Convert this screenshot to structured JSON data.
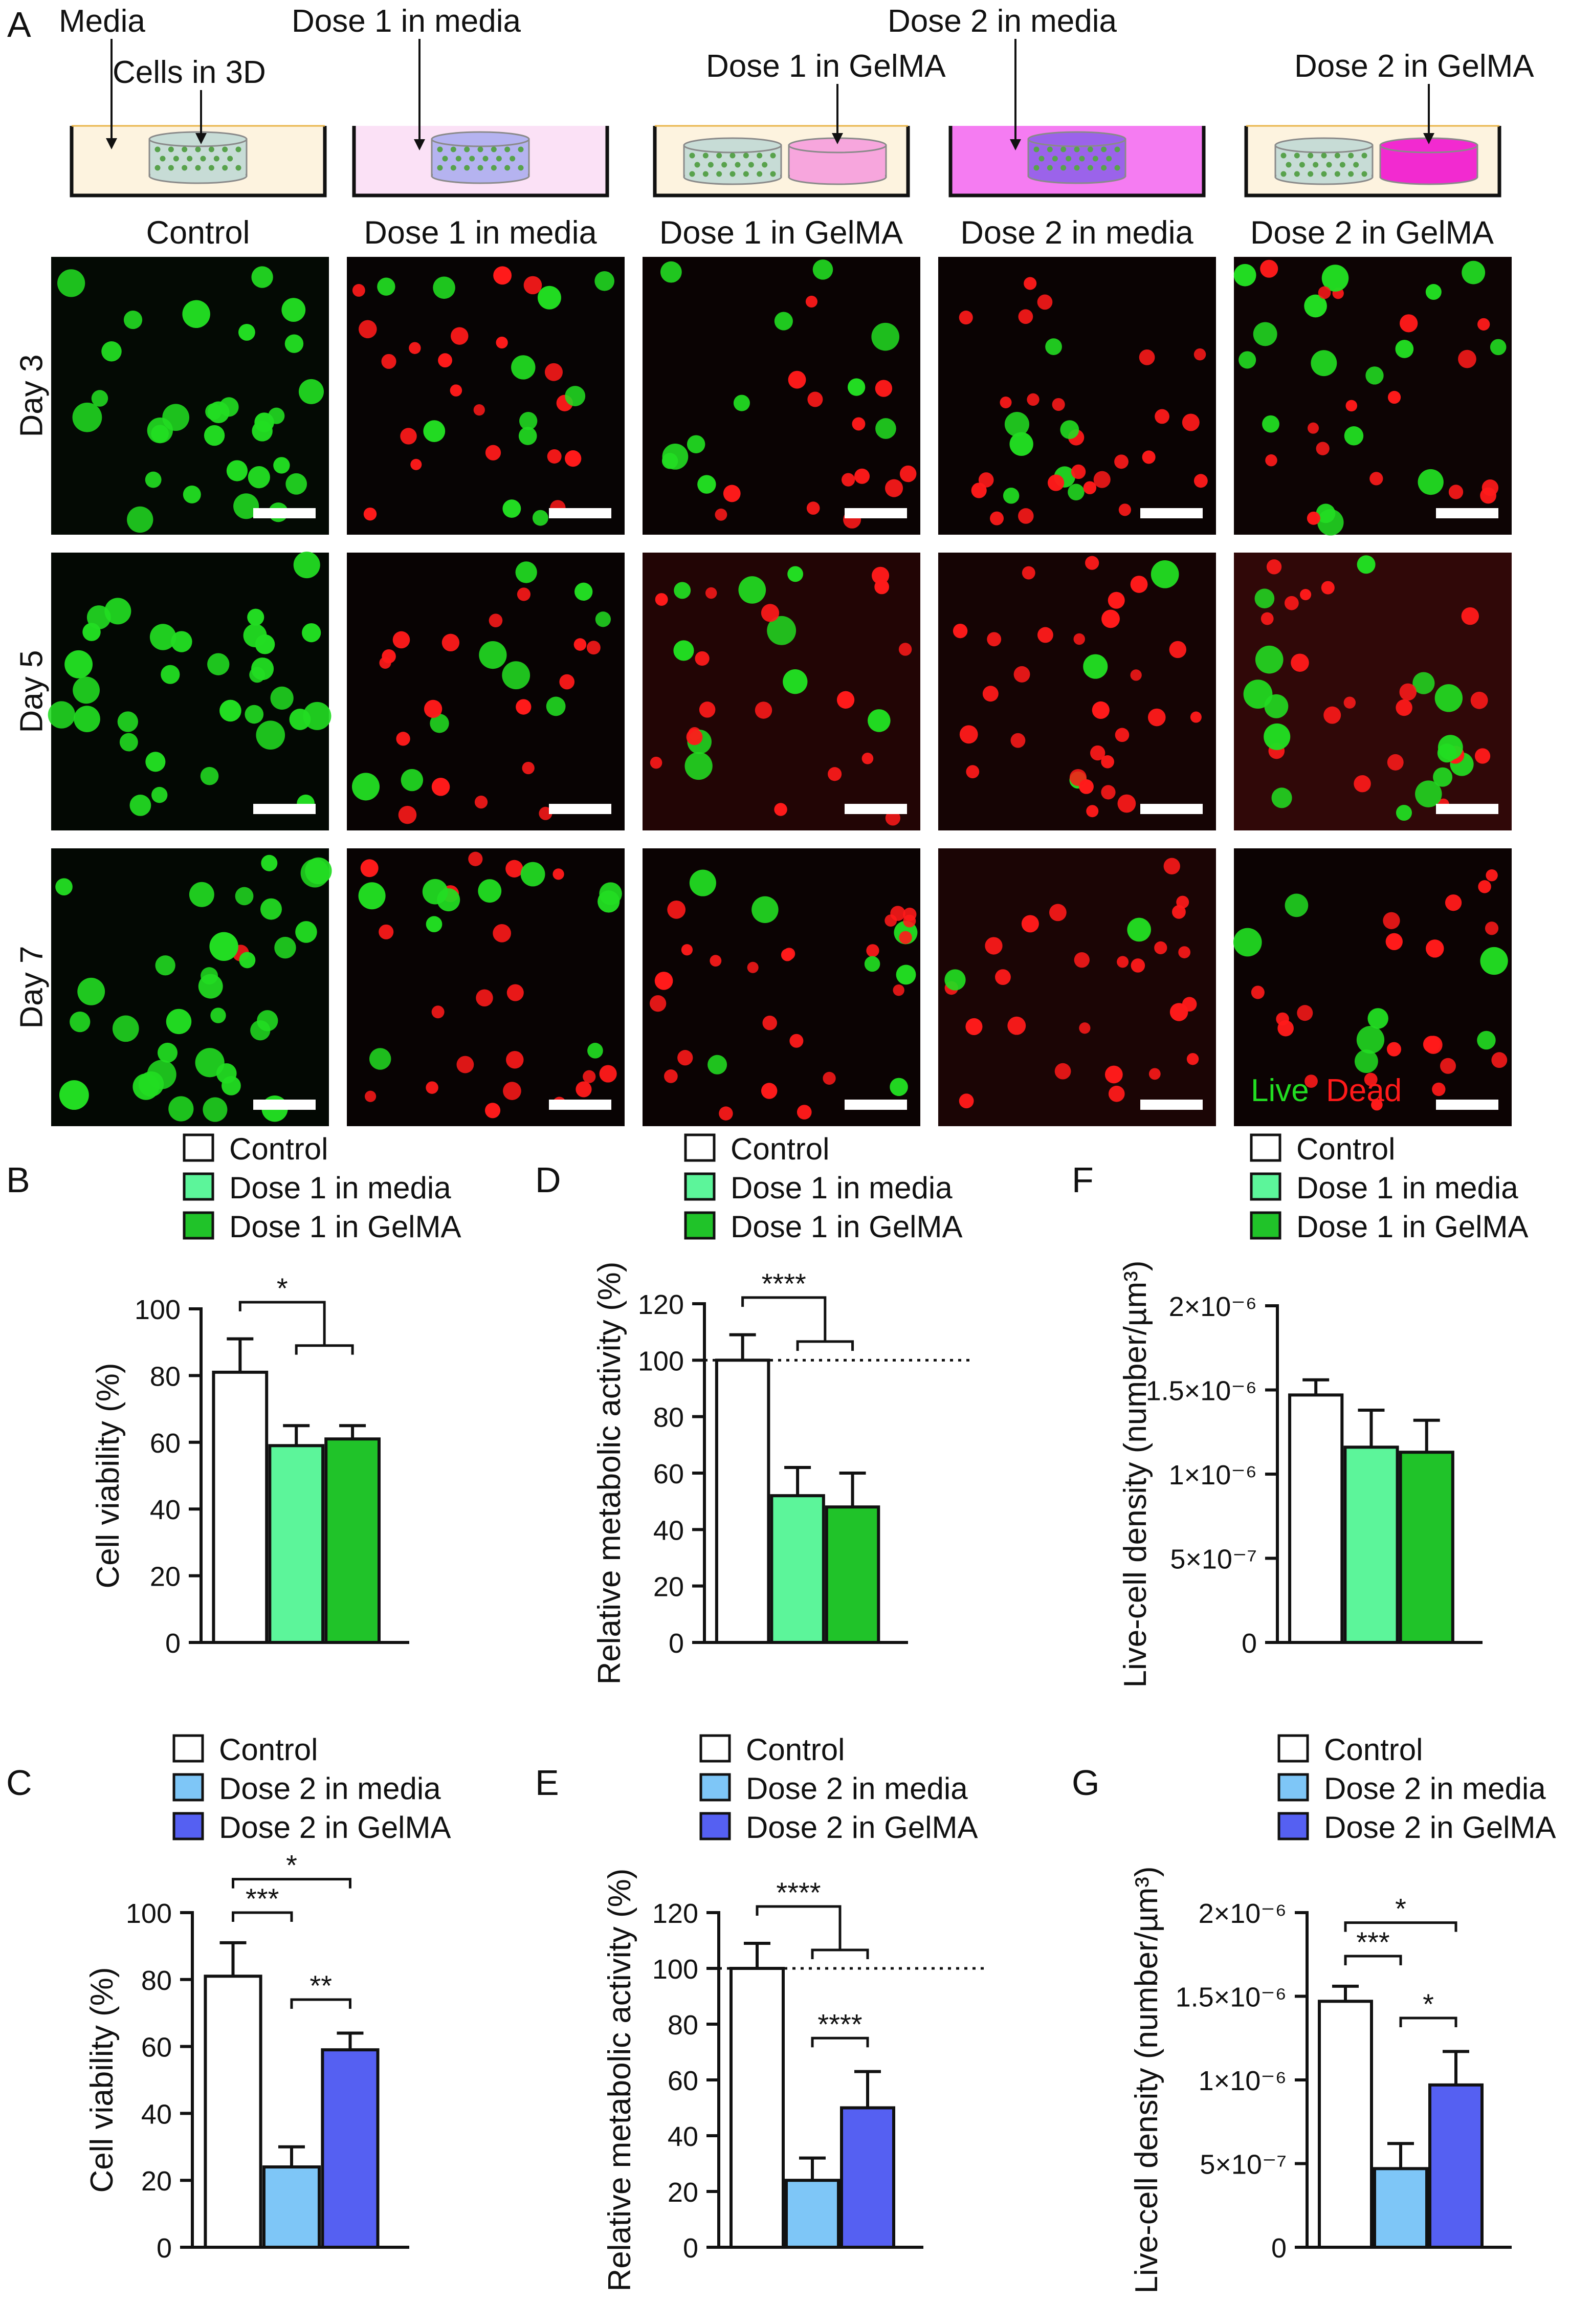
{
  "panel_a": {
    "letter": "A",
    "schematic_labels": {
      "media": "Media",
      "cells": "Cells in 3D",
      "dose1_media": "Dose 1 in media",
      "dose1_gelma": "Dose 1 in GelMA",
      "dose2_media": "Dose 2 in media",
      "dose2_gelma": "Dose 2 in GelMA"
    },
    "columns": [
      "Control",
      "Dose 1 in media",
      "Dose 1 in GelMA",
      "Dose 2 in media",
      "Dose 2 in GelMA"
    ],
    "rows": [
      "Day 3",
      "Day 5",
      "Day 7"
    ],
    "legend_live": "Live",
    "legend_dead": "Dead",
    "colors": {
      "live": "#22dd22",
      "dead": "#ff1a1a",
      "control_well": "#fdf3df",
      "dose1_media_well": "#fbe1f6",
      "dose2_media_well": "#f57cf2",
      "gel_cells": "#c7dcd6",
      "gel_dose1_media": "#b5b3f0",
      "gel_dose2_media": "#9b63ea",
      "gel_dose1": "#f7a6dd",
      "gel_dose2": "#f22ad0"
    }
  },
  "chart_data": [
    {
      "panel": "B",
      "type": "bar",
      "ylabel": "Cell viability (%)",
      "ylim": [
        0,
        100
      ],
      "yticks": [
        "0",
        "20",
        "40",
        "60",
        "80",
        "100"
      ],
      "legend": [
        "Control",
        "Dose 1 in media",
        "Dose 1 in GelMA"
      ],
      "colors": [
        "#ffffff",
        "#5cf59a",
        "#20c329"
      ],
      "values": [
        81,
        59,
        61
      ],
      "errors": [
        10,
        6,
        4
      ],
      "reference_line": null,
      "annotations": [
        {
          "text": "*",
          "from": 0,
          "to": [
            1,
            2
          ]
        }
      ]
    },
    {
      "panel": "C",
      "type": "bar",
      "ylabel": "Cell viability (%)",
      "ylim": [
        0,
        100
      ],
      "yticks": [
        "0",
        "20",
        "40",
        "60",
        "80",
        "100"
      ],
      "legend": [
        "Control",
        "Dose 2 in media",
        "Dose 2 in GelMA"
      ],
      "colors": [
        "#ffffff",
        "#7ec6f7",
        "#5560f2"
      ],
      "values": [
        81,
        24,
        59
      ],
      "errors": [
        10,
        6,
        5
      ],
      "reference_line": null,
      "annotations": [
        {
          "text": "*",
          "from": 0,
          "to": 2
        },
        {
          "text": "***",
          "from": 0,
          "to": 1
        },
        {
          "text": "**",
          "from": 1,
          "to": 2
        }
      ]
    },
    {
      "panel": "D",
      "type": "bar",
      "ylabel": "Relative metabolic activity (%)",
      "ylim": [
        0,
        120
      ],
      "yticks": [
        "0",
        "20",
        "40",
        "60",
        "80",
        "100",
        "120"
      ],
      "legend": [
        "Control",
        "Dose 1 in media",
        "Dose 1 in GelMA"
      ],
      "colors": [
        "#ffffff",
        "#5cf59a",
        "#20c329"
      ],
      "values": [
        100,
        52,
        48
      ],
      "errors": [
        9,
        10,
        12
      ],
      "reference_line": 100,
      "annotations": [
        {
          "text": "****",
          "from": 0,
          "to": [
            1,
            2
          ]
        }
      ]
    },
    {
      "panel": "E",
      "type": "bar",
      "ylabel": "Relative metabolic activity (%)",
      "ylim": [
        0,
        120
      ],
      "yticks": [
        "0",
        "20",
        "40",
        "60",
        "80",
        "100",
        "120"
      ],
      "legend": [
        "Control",
        "Dose 2 in media",
        "Dose 2 in GelMA"
      ],
      "colors": [
        "#ffffff",
        "#7ec6f7",
        "#5560f2"
      ],
      "values": [
        100,
        24,
        50
      ],
      "errors": [
        9,
        8,
        13
      ],
      "reference_line": 100,
      "annotations": [
        {
          "text": "****",
          "from": 0,
          "to": [
            1,
            2
          ]
        },
        {
          "text": "****",
          "from": 1,
          "to": 2
        }
      ]
    },
    {
      "panel": "F",
      "type": "bar",
      "ylabel": "Live-cell density (number/µm³)",
      "ylim": [
        0,
        2e-06
      ],
      "yticks": [
        "0",
        "5×10⁻⁷",
        "1×10⁻⁶",
        "1.5×10⁻⁶",
        "2×10⁻⁶"
      ],
      "legend": [
        "Control",
        "Dose 1 in media",
        "Dose 1 in GelMA"
      ],
      "colors": [
        "#ffffff",
        "#5cf59a",
        "#20c329"
      ],
      "values": [
        1.47e-06,
        1.16e-06,
        1.13e-06
      ],
      "errors": [
        9e-08,
        2.2e-07,
        1.9e-07
      ],
      "reference_line": null,
      "annotations": []
    },
    {
      "panel": "G",
      "type": "bar",
      "ylabel": "Live-cell density (number/µm³)",
      "ylim": [
        0,
        2e-06
      ],
      "yticks": [
        "0",
        "5×10⁻⁷",
        "1×10⁻⁶",
        "1.5×10⁻⁶",
        "2×10⁻⁶"
      ],
      "legend": [
        "Control",
        "Dose 2 in media",
        "Dose 2 in GelMA"
      ],
      "colors": [
        "#ffffff",
        "#7ec6f7",
        "#5560f2"
      ],
      "values": [
        1.47e-06,
        4.7e-07,
        9.7e-07
      ],
      "errors": [
        9e-08,
        1.5e-07,
        2e-07
      ],
      "reference_line": null,
      "annotations": [
        {
          "text": "*",
          "from": 0,
          "to": 2
        },
        {
          "text": "***",
          "from": 0,
          "to": 1
        },
        {
          "text": "*",
          "from": 1,
          "to": 2
        }
      ]
    }
  ]
}
